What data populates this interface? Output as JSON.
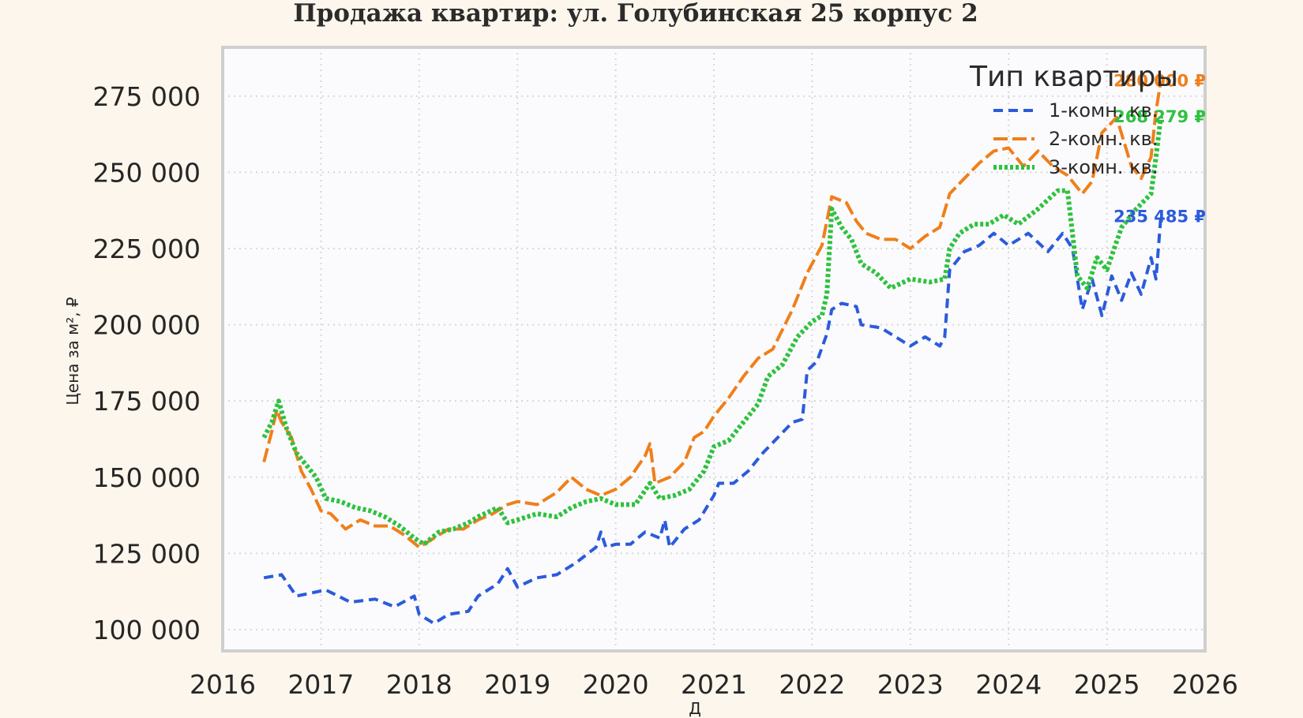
{
  "chart_data": {
    "type": "line",
    "title": "Продажа квартир: ул. Голубинская 25 корпус 2",
    "xlabel": "Д",
    "ylabel": "Цена за м², ₽",
    "xlim": [
      2016,
      2026
    ],
    "ylim": [
      93000,
      291000
    ],
    "x_ticks": [
      "2016",
      "2017",
      "2018",
      "2019",
      "2020",
      "2021",
      "2022",
      "2023",
      "2024",
      "2025",
      "2026"
    ],
    "y_ticks": [
      "100 000",
      "125 000",
      "150 000",
      "175 000",
      "200 000",
      "225 000",
      "250 000",
      "275 000"
    ],
    "y_tick_values": [
      100000,
      125000,
      150000,
      175000,
      200000,
      225000,
      250000,
      275000
    ],
    "grid": true,
    "legend": {
      "title": "Тип квартиры",
      "position": "top-right"
    },
    "series": [
      {
        "name": "1-комн. кв.",
        "color": "#2b5bdc",
        "dash": "dashed",
        "end_label": "235 485 ₽",
        "points": [
          [
            2016.42,
            117000
          ],
          [
            2016.6,
            118000
          ],
          [
            2016.75,
            111000
          ],
          [
            2016.9,
            112000
          ],
          [
            2017.05,
            113000
          ],
          [
            2017.3,
            109000
          ],
          [
            2017.55,
            110000
          ],
          [
            2017.75,
            107500
          ],
          [
            2017.95,
            111000
          ],
          [
            2018.0,
            105000
          ],
          [
            2018.15,
            102000
          ],
          [
            2018.3,
            105000
          ],
          [
            2018.5,
            106000
          ],
          [
            2018.6,
            111000
          ],
          [
            2018.8,
            115000
          ],
          [
            2018.9,
            120000
          ],
          [
            2019.0,
            114000
          ],
          [
            2019.2,
            117000
          ],
          [
            2019.4,
            118000
          ],
          [
            2019.6,
            122000
          ],
          [
            2019.8,
            127000
          ],
          [
            2019.85,
            132000
          ],
          [
            2019.9,
            127000
          ],
          [
            2020.0,
            128000
          ],
          [
            2020.15,
            128000
          ],
          [
            2020.3,
            132000
          ],
          [
            2020.45,
            130000
          ],
          [
            2020.5,
            136000
          ],
          [
            2020.55,
            127000
          ],
          [
            2020.7,
            133000
          ],
          [
            2020.85,
            136000
          ],
          [
            2021.0,
            144000
          ],
          [
            2021.05,
            148000
          ],
          [
            2021.2,
            148000
          ],
          [
            2021.35,
            152000
          ],
          [
            2021.5,
            158000
          ],
          [
            2021.65,
            163000
          ],
          [
            2021.8,
            168000
          ],
          [
            2021.9,
            169000
          ],
          [
            2021.95,
            185000
          ],
          [
            2022.05,
            188000
          ],
          [
            2022.15,
            197000
          ],
          [
            2022.2,
            205000
          ],
          [
            2022.3,
            207000
          ],
          [
            2022.45,
            206000
          ],
          [
            2022.5,
            200000
          ],
          [
            2022.7,
            199000
          ],
          [
            2022.85,
            196000
          ],
          [
            2023.0,
            193000
          ],
          [
            2023.15,
            196000
          ],
          [
            2023.3,
            193000
          ],
          [
            2023.35,
            196000
          ],
          [
            2023.4,
            218000
          ],
          [
            2023.55,
            224000
          ],
          [
            2023.7,
            226000
          ],
          [
            2023.85,
            230000
          ],
          [
            2024.0,
            226000
          ],
          [
            2024.2,
            230000
          ],
          [
            2024.4,
            224000
          ],
          [
            2024.55,
            230000
          ],
          [
            2024.65,
            225000
          ],
          [
            2024.75,
            205000
          ],
          [
            2024.85,
            215000
          ],
          [
            2024.95,
            203000
          ],
          [
            2025.05,
            216000
          ],
          [
            2025.15,
            208000
          ],
          [
            2025.25,
            217000
          ],
          [
            2025.35,
            210000
          ],
          [
            2025.45,
            222000
          ],
          [
            2025.5,
            215000
          ],
          [
            2025.55,
            235485
          ]
        ]
      },
      {
        "name": "2-комн. кв.",
        "color": "#f07f1a",
        "dash": "long-dashed",
        "end_label": "280 000 ₽",
        "points": [
          [
            2016.42,
            155000
          ],
          [
            2016.5,
            165000
          ],
          [
            2016.55,
            172000
          ],
          [
            2016.6,
            168000
          ],
          [
            2016.7,
            163000
          ],
          [
            2016.8,
            152000
          ],
          [
            2016.9,
            146000
          ],
          [
            2017.0,
            139000
          ],
          [
            2017.1,
            138000
          ],
          [
            2017.25,
            133000
          ],
          [
            2017.4,
            136000
          ],
          [
            2017.55,
            134000
          ],
          [
            2017.7,
            134000
          ],
          [
            2017.85,
            131000
          ],
          [
            2018.0,
            127000
          ],
          [
            2018.15,
            130000
          ],
          [
            2018.3,
            133000
          ],
          [
            2018.45,
            133000
          ],
          [
            2018.6,
            136000
          ],
          [
            2018.75,
            138000
          ],
          [
            2018.9,
            141000
          ],
          [
            2019.0,
            142000
          ],
          [
            2019.2,
            141000
          ],
          [
            2019.4,
            145000
          ],
          [
            2019.55,
            150000
          ],
          [
            2019.7,
            146000
          ],
          [
            2019.85,
            144000
          ],
          [
            2020.0,
            146000
          ],
          [
            2020.15,
            150000
          ],
          [
            2020.3,
            157000
          ],
          [
            2020.35,
            161000
          ],
          [
            2020.4,
            148000
          ],
          [
            2020.55,
            150000
          ],
          [
            2020.7,
            155000
          ],
          [
            2020.8,
            163000
          ],
          [
            2020.9,
            165000
          ],
          [
            2021.0,
            170000
          ],
          [
            2021.15,
            176000
          ],
          [
            2021.3,
            183000
          ],
          [
            2021.45,
            189000
          ],
          [
            2021.6,
            192000
          ],
          [
            2021.8,
            205000
          ],
          [
            2021.95,
            217000
          ],
          [
            2022.1,
            226000
          ],
          [
            2022.2,
            242000
          ],
          [
            2022.35,
            240000
          ],
          [
            2022.45,
            234000
          ],
          [
            2022.55,
            230000
          ],
          [
            2022.7,
            228000
          ],
          [
            2022.85,
            228000
          ],
          [
            2023.0,
            225000
          ],
          [
            2023.15,
            229000
          ],
          [
            2023.3,
            232000
          ],
          [
            2023.4,
            243000
          ],
          [
            2023.55,
            248000
          ],
          [
            2023.7,
            253000
          ],
          [
            2023.85,
            257000
          ],
          [
            2024.0,
            258000
          ],
          [
            2024.15,
            252000
          ],
          [
            2024.3,
            257000
          ],
          [
            2024.45,
            252000
          ],
          [
            2024.6,
            249000
          ],
          [
            2024.75,
            243000
          ],
          [
            2024.85,
            247000
          ],
          [
            2024.95,
            263000
          ],
          [
            2025.1,
            268000
          ],
          [
            2025.25,
            252000
          ],
          [
            2025.35,
            248000
          ],
          [
            2025.45,
            255000
          ],
          [
            2025.5,
            270000
          ],
          [
            2025.55,
            280000
          ]
        ]
      },
      {
        "name": "3-комн. кв.",
        "color": "#2ec23f",
        "dash": "dotted",
        "end_label": "268 279 ₽",
        "points": [
          [
            2016.42,
            163000
          ],
          [
            2016.5,
            168000
          ],
          [
            2016.57,
            175000
          ],
          [
            2016.65,
            166000
          ],
          [
            2016.75,
            158000
          ],
          [
            2016.85,
            154000
          ],
          [
            2016.95,
            150000
          ],
          [
            2017.05,
            143000
          ],
          [
            2017.2,
            142000
          ],
          [
            2017.35,
            140000
          ],
          [
            2017.5,
            139000
          ],
          [
            2017.65,
            137000
          ],
          [
            2017.8,
            134000
          ],
          [
            2017.95,
            130000
          ],
          [
            2018.05,
            128000
          ],
          [
            2018.2,
            132000
          ],
          [
            2018.35,
            133000
          ],
          [
            2018.5,
            135000
          ],
          [
            2018.6,
            137000
          ],
          [
            2018.8,
            140000
          ],
          [
            2018.9,
            135000
          ],
          [
            2019.0,
            136000
          ],
          [
            2019.2,
            138000
          ],
          [
            2019.4,
            137000
          ],
          [
            2019.55,
            140000
          ],
          [
            2019.7,
            142000
          ],
          [
            2019.85,
            143000
          ],
          [
            2020.0,
            141000
          ],
          [
            2020.2,
            141000
          ],
          [
            2020.35,
            148000
          ],
          [
            2020.45,
            143000
          ],
          [
            2020.6,
            144000
          ],
          [
            2020.75,
            146000
          ],
          [
            2020.9,
            152000
          ],
          [
            2021.0,
            160000
          ],
          [
            2021.15,
            162000
          ],
          [
            2021.3,
            168000
          ],
          [
            2021.45,
            174000
          ],
          [
            2021.55,
            183000
          ],
          [
            2021.7,
            187000
          ],
          [
            2021.85,
            196000
          ],
          [
            2022.0,
            201000
          ],
          [
            2022.1,
            203000
          ],
          [
            2022.15,
            210000
          ],
          [
            2022.2,
            238000
          ],
          [
            2022.3,
            232000
          ],
          [
            2022.4,
            228000
          ],
          [
            2022.5,
            220000
          ],
          [
            2022.65,
            217000
          ],
          [
            2022.8,
            212000
          ],
          [
            2023.0,
            215000
          ],
          [
            2023.2,
            214000
          ],
          [
            2023.35,
            215000
          ],
          [
            2023.4,
            225000
          ],
          [
            2023.5,
            230000
          ],
          [
            2023.65,
            233000
          ],
          [
            2023.8,
            233000
          ],
          [
            2023.95,
            236000
          ],
          [
            2024.1,
            233000
          ],
          [
            2024.3,
            238000
          ],
          [
            2024.5,
            244000
          ],
          [
            2024.6,
            244000
          ],
          [
            2024.7,
            216000
          ],
          [
            2024.8,
            212000
          ],
          [
            2024.9,
            222000
          ],
          [
            2025.0,
            218000
          ],
          [
            2025.15,
            232000
          ],
          [
            2025.3,
            238000
          ],
          [
            2025.45,
            243000
          ],
          [
            2025.5,
            255000
          ],
          [
            2025.55,
            268279
          ]
        ]
      }
    ]
  }
}
